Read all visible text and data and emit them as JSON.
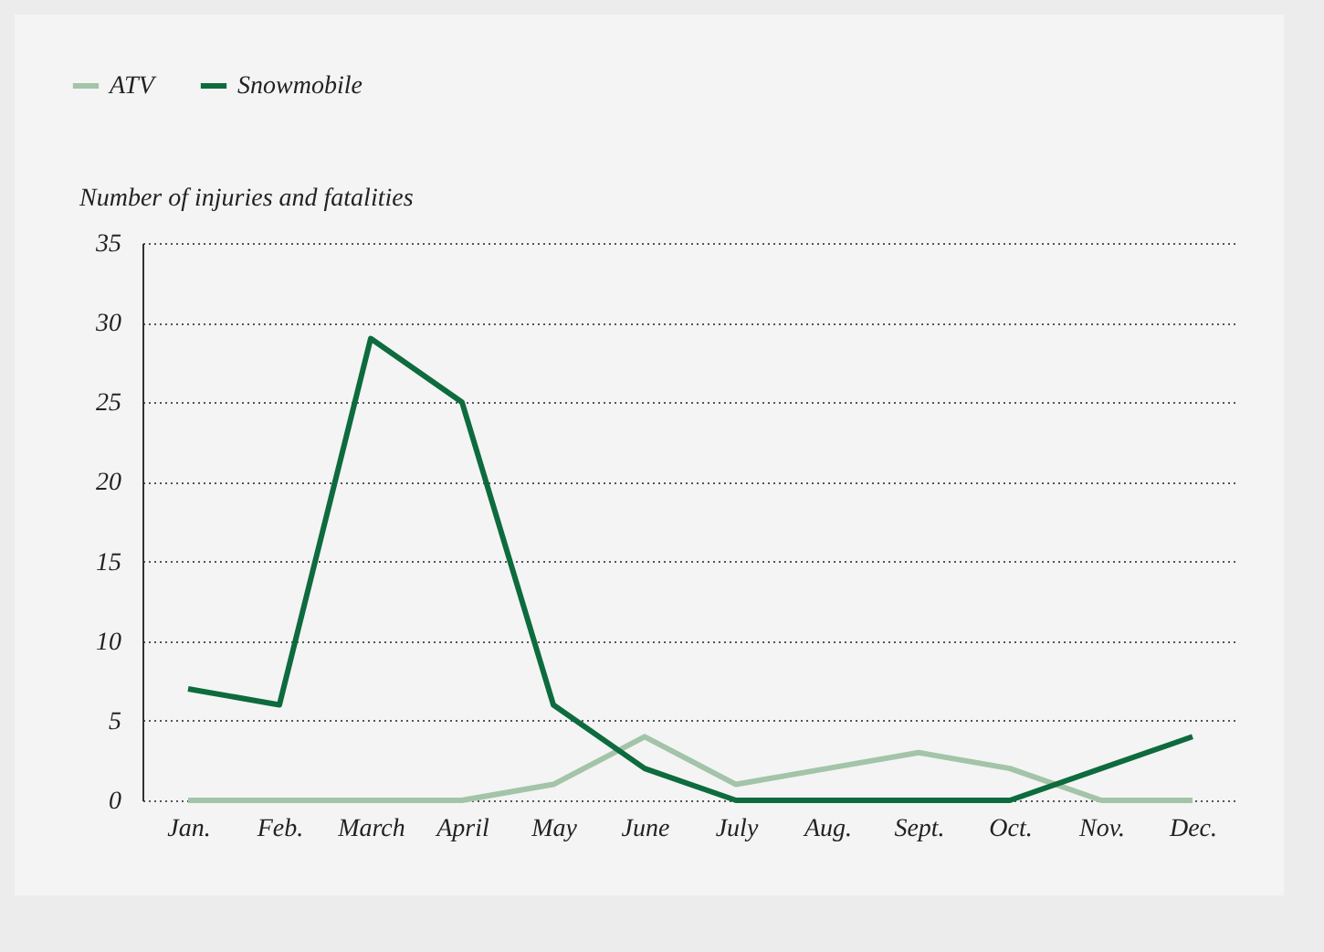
{
  "chart_data": {
    "type": "line",
    "ylabel": "Number of injuries and fatalities",
    "categories": [
      "Jan.",
      "Feb.",
      "March",
      "April",
      "May",
      "June",
      "July",
      "Aug.",
      "Sept.",
      "Oct.",
      "Nov.",
      "Dec."
    ],
    "series": [
      {
        "name": "ATV",
        "color": "#a3c4a8",
        "values": [
          0,
          0,
          0,
          0,
          1,
          4,
          1,
          2,
          3,
          2,
          0,
          0
        ]
      },
      {
        "name": "Snowmobile",
        "color": "#0d6b3e",
        "values": [
          7,
          6,
          29,
          25,
          6,
          2,
          0,
          0,
          0,
          0,
          2,
          4
        ]
      }
    ],
    "ylim": [
      0,
      35
    ],
    "yticks": [
      0,
      5,
      10,
      15,
      20,
      25,
      30,
      35
    ],
    "grid": "y",
    "legend": "top left"
  }
}
